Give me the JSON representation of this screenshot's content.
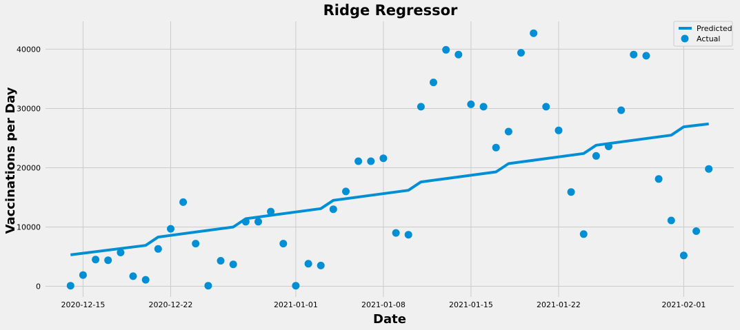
{
  "chart_data": {
    "type": "line+scatter",
    "title": "Ridge Regressor",
    "xlabel": "Date",
    "ylabel": "Vaccinations per Day",
    "xlim": [
      "2020-12-12",
      "2021-02-05"
    ],
    "ylim": [
      -1800,
      44700
    ],
    "x_ticks": [
      "2020-12-15",
      "2020-12-22",
      "2021-01-01",
      "2021-01-08",
      "2021-01-15",
      "2021-01-22",
      "2021-02-01"
    ],
    "y_ticks": [
      0,
      10000,
      20000,
      30000,
      40000
    ],
    "grid": true,
    "legend": "top-right",
    "colors": {
      "series": "#008fd5",
      "background": "#f0f0f0",
      "grid": "#cbcbcb"
    },
    "series": [
      {
        "name": "Predicted",
        "kind": "line",
        "points": [
          [
            "2020-12-14",
            5300
          ],
          [
            "2020-12-20",
            6900
          ],
          [
            "2020-12-21",
            8300
          ],
          [
            "2020-12-27",
            10000
          ],
          [
            "2020-12-28",
            11400
          ],
          [
            "2021-01-03",
            13100
          ],
          [
            "2021-01-04",
            14500
          ],
          [
            "2021-01-10",
            16200
          ],
          [
            "2021-01-11",
            17600
          ],
          [
            "2021-01-17",
            19300
          ],
          [
            "2021-01-18",
            20700
          ],
          [
            "2021-01-24",
            22400
          ],
          [
            "2021-01-25",
            23800
          ],
          [
            "2021-01-31",
            25500
          ],
          [
            "2021-02-01",
            26900
          ],
          [
            "2021-02-03",
            27400
          ]
        ]
      },
      {
        "name": "Actual",
        "kind": "scatter",
        "points": [
          [
            "2020-12-14",
            100
          ],
          [
            "2020-12-15",
            1900
          ],
          [
            "2020-12-16",
            4500
          ],
          [
            "2020-12-17",
            4400
          ],
          [
            "2020-12-18",
            5700
          ],
          [
            "2020-12-19",
            1700
          ],
          [
            "2020-12-20",
            1100
          ],
          [
            "2020-12-21",
            6300
          ],
          [
            "2020-12-22",
            9700
          ],
          [
            "2020-12-23",
            14200
          ],
          [
            "2020-12-24",
            7200
          ],
          [
            "2020-12-25",
            100
          ],
          [
            "2020-12-26",
            4300
          ],
          [
            "2020-12-27",
            3700
          ],
          [
            "2020-12-28",
            10900
          ],
          [
            "2020-12-29",
            10900
          ],
          [
            "2020-12-30",
            12600
          ],
          [
            "2020-12-31",
            7200
          ],
          [
            "2021-01-01",
            100
          ],
          [
            "2021-01-02",
            3800
          ],
          [
            "2021-01-03",
            3500
          ],
          [
            "2021-01-04",
            13000
          ],
          [
            "2021-01-05",
            16000
          ],
          [
            "2021-01-06",
            21100
          ],
          [
            "2021-01-07",
            21100
          ],
          [
            "2021-01-08",
            21600
          ],
          [
            "2021-01-09",
            9000
          ],
          [
            "2021-01-10",
            8700
          ],
          [
            "2021-01-11",
            30300
          ],
          [
            "2021-01-12",
            34400
          ],
          [
            "2021-01-13",
            39900
          ],
          [
            "2021-01-14",
            39100
          ],
          [
            "2021-01-15",
            30700
          ],
          [
            "2021-01-16",
            30300
          ],
          [
            "2021-01-17",
            23400
          ],
          [
            "2021-01-18",
            26100
          ],
          [
            "2021-01-19",
            39400
          ],
          [
            "2021-01-20",
            42700
          ],
          [
            "2021-01-21",
            30300
          ],
          [
            "2021-01-22",
            26300
          ],
          [
            "2021-01-23",
            15900
          ],
          [
            "2021-01-24",
            8800
          ],
          [
            "2021-01-25",
            22000
          ],
          [
            "2021-01-26",
            23600
          ],
          [
            "2021-01-27",
            29700
          ],
          [
            "2021-01-28",
            39100
          ],
          [
            "2021-01-29",
            38900
          ],
          [
            "2021-01-30",
            18100
          ],
          [
            "2021-01-31",
            11100
          ],
          [
            "2021-02-01",
            5200
          ],
          [
            "2021-02-02",
            9300
          ],
          [
            "2021-02-03",
            19800
          ]
        ]
      }
    ]
  }
}
